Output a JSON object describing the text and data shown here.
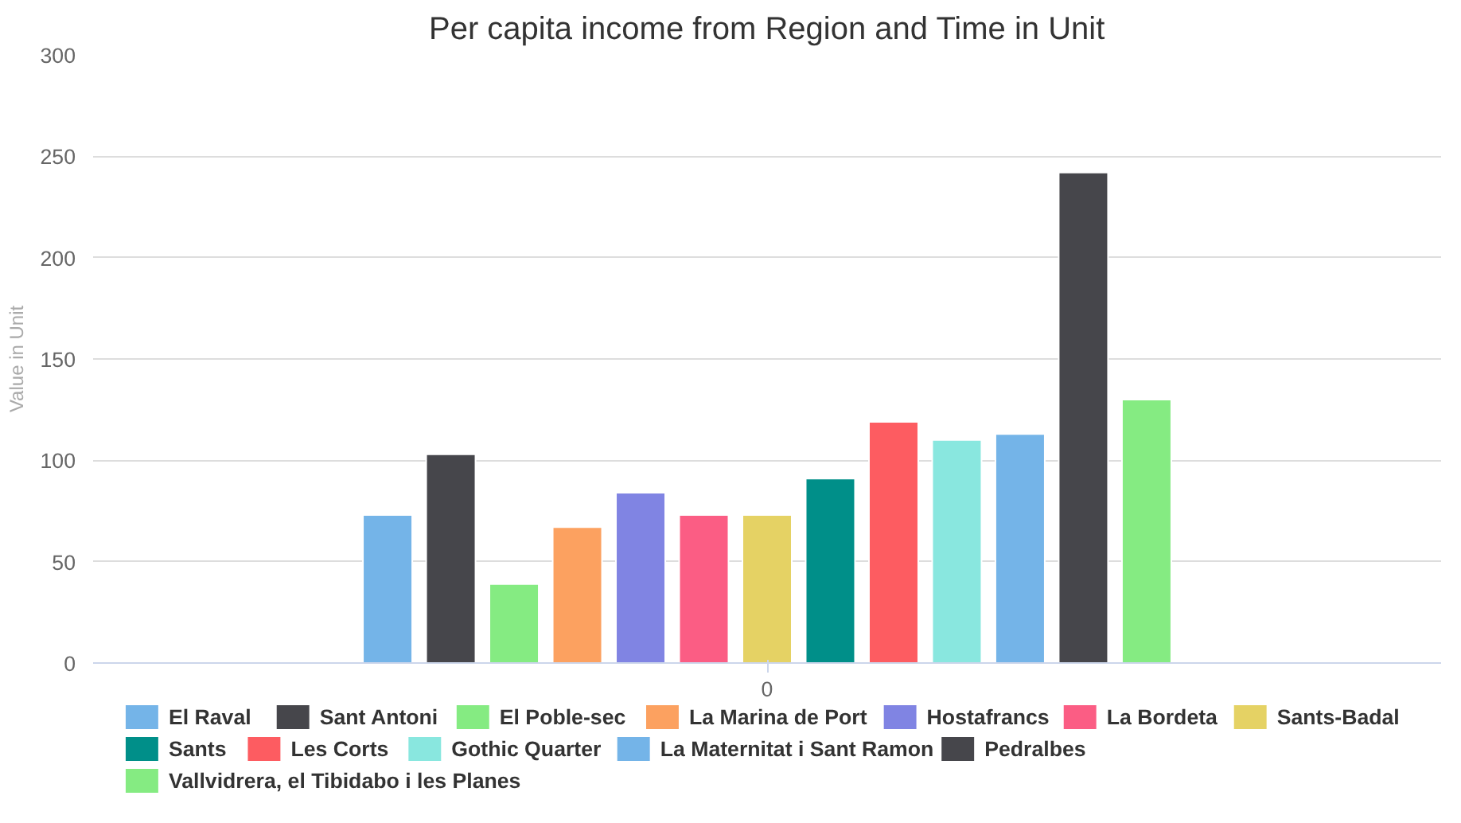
{
  "chart_data": {
    "type": "bar",
    "title": "Per capita income from Region and Time in Unit",
    "ylabel": "Value in Unit",
    "categories": [
      "0"
    ],
    "series": [
      {
        "name": "El Raval",
        "color": "#74b4e8",
        "values": [
          73
        ]
      },
      {
        "name": "Sant Antoni",
        "color": "#46464b",
        "values": [
          103
        ]
      },
      {
        "name": "El Poble-sec",
        "color": "#85eb82",
        "values": [
          39
        ]
      },
      {
        "name": "La Marina de Port",
        "color": "#fca160",
        "values": [
          67
        ]
      },
      {
        "name": "Hostafrancs",
        "color": "#8084e3",
        "values": [
          84
        ]
      },
      {
        "name": "La Bordeta",
        "color": "#fb5d84",
        "values": [
          73
        ]
      },
      {
        "name": "Sants-Badal",
        "color": "#e5d264",
        "values": [
          73
        ]
      },
      {
        "name": "Sants",
        "color": "#008f89",
        "values": [
          91
        ]
      },
      {
        "name": "Les Corts",
        "color": "#fd5c61",
        "values": [
          119
        ]
      },
      {
        "name": "Gothic Quarter",
        "color": "#89e7df",
        "values": [
          110
        ]
      },
      {
        "name": "La Maternitat i Sant Ramon",
        "color": "#74b4e8",
        "values": [
          113
        ]
      },
      {
        "name": "Pedralbes",
        "color": "#46464b",
        "values": [
          242
        ]
      },
      {
        "name": "Vallvidrera, el Tibidabo i les Planes",
        "color": "#85eb82",
        "values": [
          130
        ]
      }
    ],
    "ylim": [
      0,
      300
    ],
    "yticks": [
      0,
      50,
      100,
      150,
      200,
      250,
      300
    ],
    "grid": "y",
    "legend": "bottom"
  }
}
